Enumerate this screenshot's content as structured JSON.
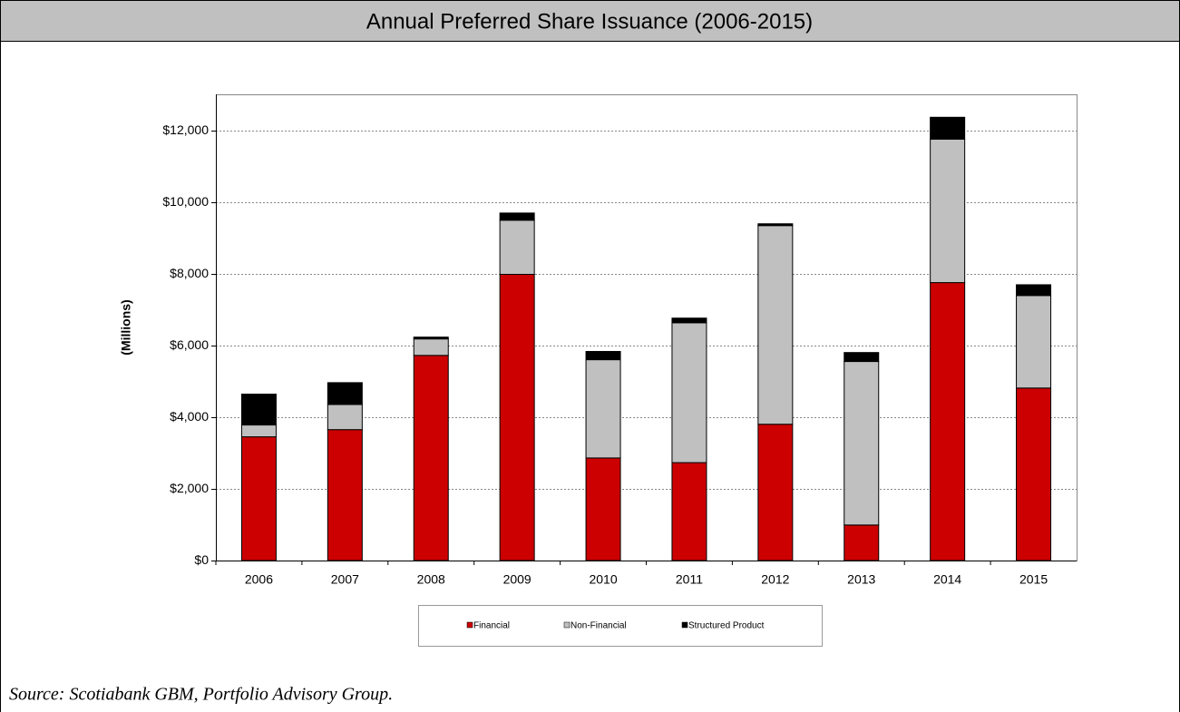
{
  "chart_data": {
    "type": "stacked-bar",
    "title": "Annual Preferred Share Issuance (2006-2015)",
    "y_label": "(Millions)",
    "categories": [
      "2006",
      "2007",
      "2008",
      "2009",
      "2010",
      "2011",
      "2012",
      "2013",
      "2014",
      "2015"
    ],
    "series": [
      {
        "name": "Financial",
        "color": "#cc0000",
        "values": [
          3450,
          3650,
          5720,
          7980,
          2860,
          2730,
          3800,
          990,
          7750,
          4810
        ]
      },
      {
        "name": "Non-Financial",
        "color": "#c0c0c0",
        "values": [
          330,
          700,
          460,
          1510,
          2740,
          3900,
          5540,
          4560,
          4000,
          2580
        ]
      },
      {
        "name": "Structured Product",
        "color": "#000000",
        "values": [
          860,
          610,
          50,
          200,
          230,
          130,
          50,
          250,
          610,
          300
        ]
      }
    ],
    "ylim": [
      0,
      13000
    ],
    "yticks": [
      {
        "value": 0,
        "label": "$0"
      },
      {
        "value": 2000,
        "label": "$2,000"
      },
      {
        "value": 4000,
        "label": "$4,000"
      },
      {
        "value": 6000,
        "label": "$6,000"
      },
      {
        "value": 8000,
        "label": "$8,000"
      },
      {
        "value": 10000,
        "label": "$10,000"
      },
      {
        "value": 12000,
        "label": "$12,000"
      }
    ],
    "grid": true,
    "source": "Source: Scotiabank GBM, Portfolio Advisory Group."
  }
}
